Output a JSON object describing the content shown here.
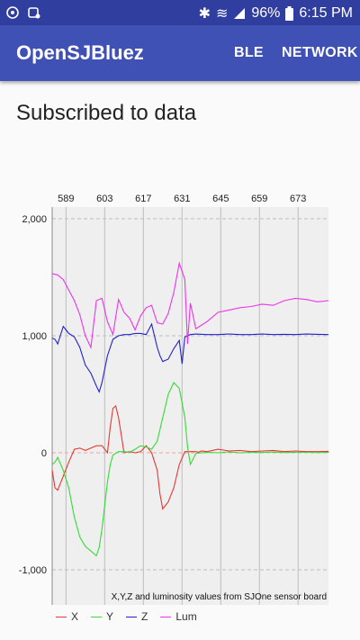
{
  "status_bar": {
    "battery": "96%",
    "time": "6:15 PM",
    "icons": [
      "sync-icon",
      "broadcast-icon",
      "bluetooth-icon",
      "wifi-icon",
      "signal-icon",
      "battery-icon"
    ]
  },
  "app_bar": {
    "title": "OpenSJBluez",
    "menu": [
      "BLE",
      "NETWORK"
    ],
    "color": "#3f51b5"
  },
  "heading": "Subscribed to data",
  "chart_data": {
    "type": "line",
    "description": "X,Y,Z and luminosity values from SJOne sensor board",
    "x_ticks": [
      589,
      603,
      617,
      631,
      645,
      659,
      673
    ],
    "xlim": [
      584,
      684
    ],
    "ylim": [
      -1300,
      2100
    ],
    "y_ticks": [
      -1000,
      0,
      1000,
      2000
    ],
    "y_tick_labels": [
      "-1,000",
      "0",
      "1,000",
      "2,000"
    ],
    "grid": true,
    "legend_position": "bottom-left",
    "series": [
      {
        "name": "X",
        "color": "#e53935",
        "x": [
          584,
          585,
          586,
          588,
          590,
          592,
          594,
          596,
          598,
          600,
          602,
          604,
          605,
          606,
          607,
          608,
          609,
          610,
          612,
          614,
          616,
          618,
          620,
          622,
          623,
          624,
          626,
          628,
          630,
          632,
          634,
          636,
          637,
          638,
          640,
          642,
          644,
          648,
          652,
          656,
          660,
          664,
          668,
          672,
          676,
          680,
          684
        ],
        "values": [
          -150,
          -300,
          -320,
          -200,
          -80,
          30,
          40,
          20,
          40,
          60,
          60,
          0,
          220,
          380,
          400,
          300,
          150,
          0,
          10,
          0,
          10,
          60,
          0,
          -150,
          -350,
          -480,
          -420,
          -300,
          -100,
          10,
          10,
          10,
          5,
          15,
          10,
          20,
          30,
          15,
          20,
          10,
          15,
          20,
          10,
          15,
          10,
          10,
          12
        ]
      },
      {
        "name": "Y",
        "color": "#33dd33",
        "x": [
          584,
          585,
          586,
          588,
          590,
          592,
          594,
          596,
          598,
          600,
          601,
          602,
          603,
          604,
          605,
          606,
          608,
          610,
          612,
          614,
          616,
          618,
          620,
          622,
          624,
          626,
          628,
          630,
          632,
          633,
          634,
          636,
          640,
          644,
          648,
          652,
          656,
          660,
          664,
          668,
          672,
          676,
          680,
          684
        ],
        "values": [
          -100,
          -80,
          -40,
          -150,
          -300,
          -550,
          -720,
          -800,
          -840,
          -880,
          -810,
          -650,
          -450,
          -250,
          -100,
          -20,
          10,
          10,
          5,
          30,
          60,
          50,
          30,
          100,
          300,
          500,
          600,
          550,
          300,
          50,
          -100,
          -5,
          5,
          0,
          8,
          0,
          5,
          3,
          6,
          2,
          5,
          4,
          2,
          3
        ]
      },
      {
        "name": "Z",
        "color": "#2222cc",
        "x": [
          584,
          585,
          586,
          588,
          590,
          592,
          594,
          596,
          598,
          600,
          601,
          602,
          604,
          606,
          608,
          610,
          612,
          614,
          616,
          618,
          620,
          622,
          623,
          624,
          626,
          628,
          630,
          631,
          632,
          634,
          636,
          640,
          644,
          648,
          652,
          656,
          660,
          664,
          668,
          672,
          676,
          680,
          684
        ],
        "values": [
          980,
          970,
          930,
          1080,
          1020,
          990,
          900,
          750,
          680,
          570,
          520,
          600,
          830,
          970,
          1000,
          1010,
          1010,
          1020,
          1020,
          1010,
          1100,
          900,
          830,
          780,
          800,
          890,
          960,
          760,
          990,
          1010,
          1015,
          1010,
          1010,
          1015,
          1010,
          1010,
          1015,
          1010,
          1012,
          1010,
          1015,
          1012,
          1010
        ]
      },
      {
        "name": "Lum",
        "color": "#ee33ee",
        "x": [
          584,
          586,
          588,
          590,
          592,
          594,
          596,
          598,
          600,
          602,
          604,
          606,
          608,
          610,
          612,
          614,
          616,
          618,
          620,
          622,
          624,
          626,
          628,
          630,
          632,
          633,
          634,
          636,
          640,
          644,
          648,
          652,
          656,
          660,
          664,
          668,
          672,
          676,
          680,
          684
        ],
        "values": [
          1530,
          1520,
          1480,
          1390,
          1300,
          1180,
          1000,
          900,
          1300,
          1320,
          1120,
          1010,
          1310,
          1200,
          1150,
          1050,
          1170,
          1240,
          1260,
          1110,
          1100,
          1190,
          1370,
          1620,
          1480,
          930,
          1280,
          1060,
          1120,
          1200,
          1220,
          1240,
          1250,
          1270,
          1260,
          1300,
          1320,
          1310,
          1290,
          1300
        ]
      }
    ]
  }
}
